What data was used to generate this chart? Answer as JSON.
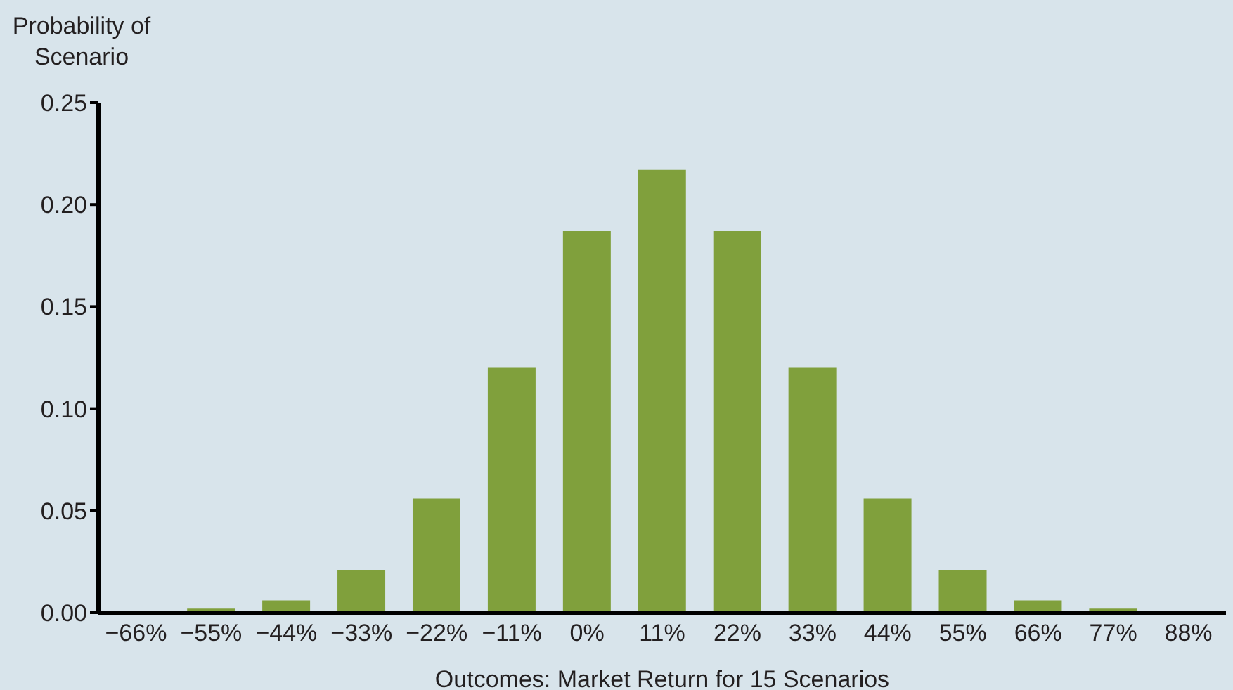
{
  "chart_data": {
    "type": "bar",
    "xlabel": "Outcomes: Market Return for 15 Scenarios",
    "ylabel": "Probability of Scenario",
    "categories": [
      "−66%",
      "−55%",
      "−44%",
      "−33%",
      "−22%",
      "−11%",
      "0%",
      "11%",
      "22%",
      "33%",
      "44%",
      "55%",
      "66%",
      "77%",
      "88%"
    ],
    "values": [
      0,
      0.002,
      0.006,
      0.021,
      0.056,
      0.12,
      0.187,
      0.217,
      0.187,
      0.12,
      0.056,
      0.021,
      0.006,
      0.002,
      0
    ],
    "color": "#80a03c",
    "ylim": [
      0,
      0.25
    ],
    "yticks": [
      {
        "value": 0,
        "label": "0.00"
      },
      {
        "value": 0.05,
        "label": "0.05"
      },
      {
        "value": 0.1,
        "label": "0.10"
      },
      {
        "value": 0.15,
        "label": "0.15"
      },
      {
        "value": 0.2,
        "label": "0.20"
      },
      {
        "value": 0.25,
        "label": "0.25"
      }
    ],
    "grid": false,
    "legend": false
  }
}
